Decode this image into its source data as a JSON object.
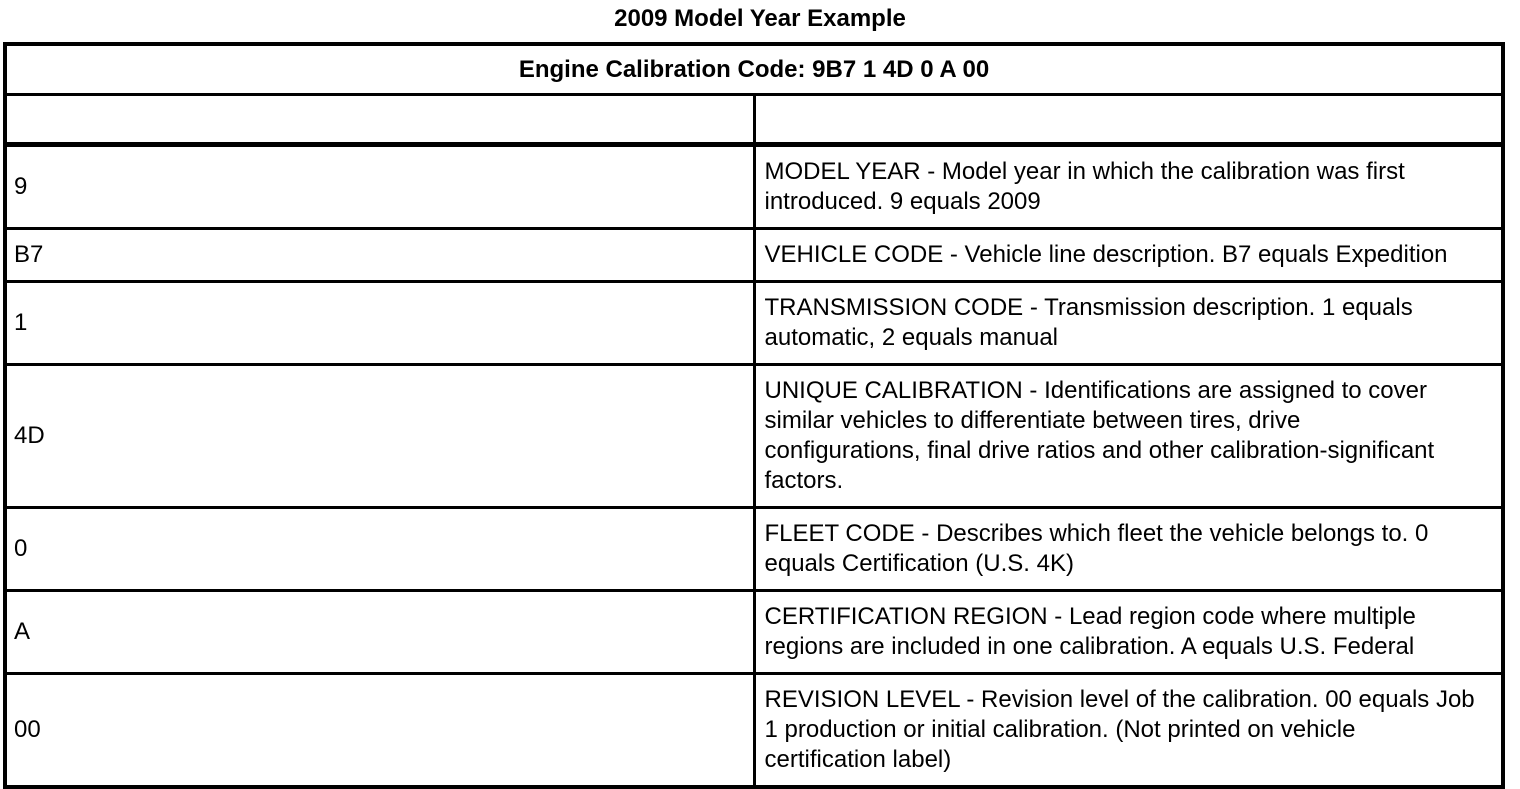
{
  "page": {
    "title": "2009 Model Year Example"
  },
  "colors": {
    "background": "#ffffff",
    "text": "#000000",
    "border": "#000000"
  },
  "table": {
    "header": "Engine Calibration Code: 9B7 1 4D 0 A 00",
    "columns": [
      "code",
      "description"
    ],
    "rows": [
      {
        "code": "9",
        "description": "MODEL YEAR - Model year in which the calibration was first introduced. 9 equals 2009"
      },
      {
        "code": "B7",
        "description": "VEHICLE CODE - Vehicle line description. B7 equals Expedition"
      },
      {
        "code": "1",
        "description": "TRANSMISSION CODE - Transmission description. 1 equals automatic, 2 equals manual"
      },
      {
        "code": "4D",
        "description": "UNIQUE CALIBRATION - Identifications are assigned to cover similar vehicles to differentiate between tires, drive\nconfigurations, final drive ratios and other calibration-significant factors."
      },
      {
        "code": "0",
        "description": "FLEET CODE - Describes which fleet the vehicle belongs to. 0 equals Certification (U.S. 4K)"
      },
      {
        "code": "A",
        "description": "CERTIFICATION REGION - Lead region code where multiple regions are included in one calibration. A equals U.S. Federal"
      },
      {
        "code": "00",
        "description": "REVISION LEVEL - Revision level of the calibration. 00 equals Job 1 production or initial calibration. (Not printed on vehicle\ncertification label)"
      }
    ]
  }
}
